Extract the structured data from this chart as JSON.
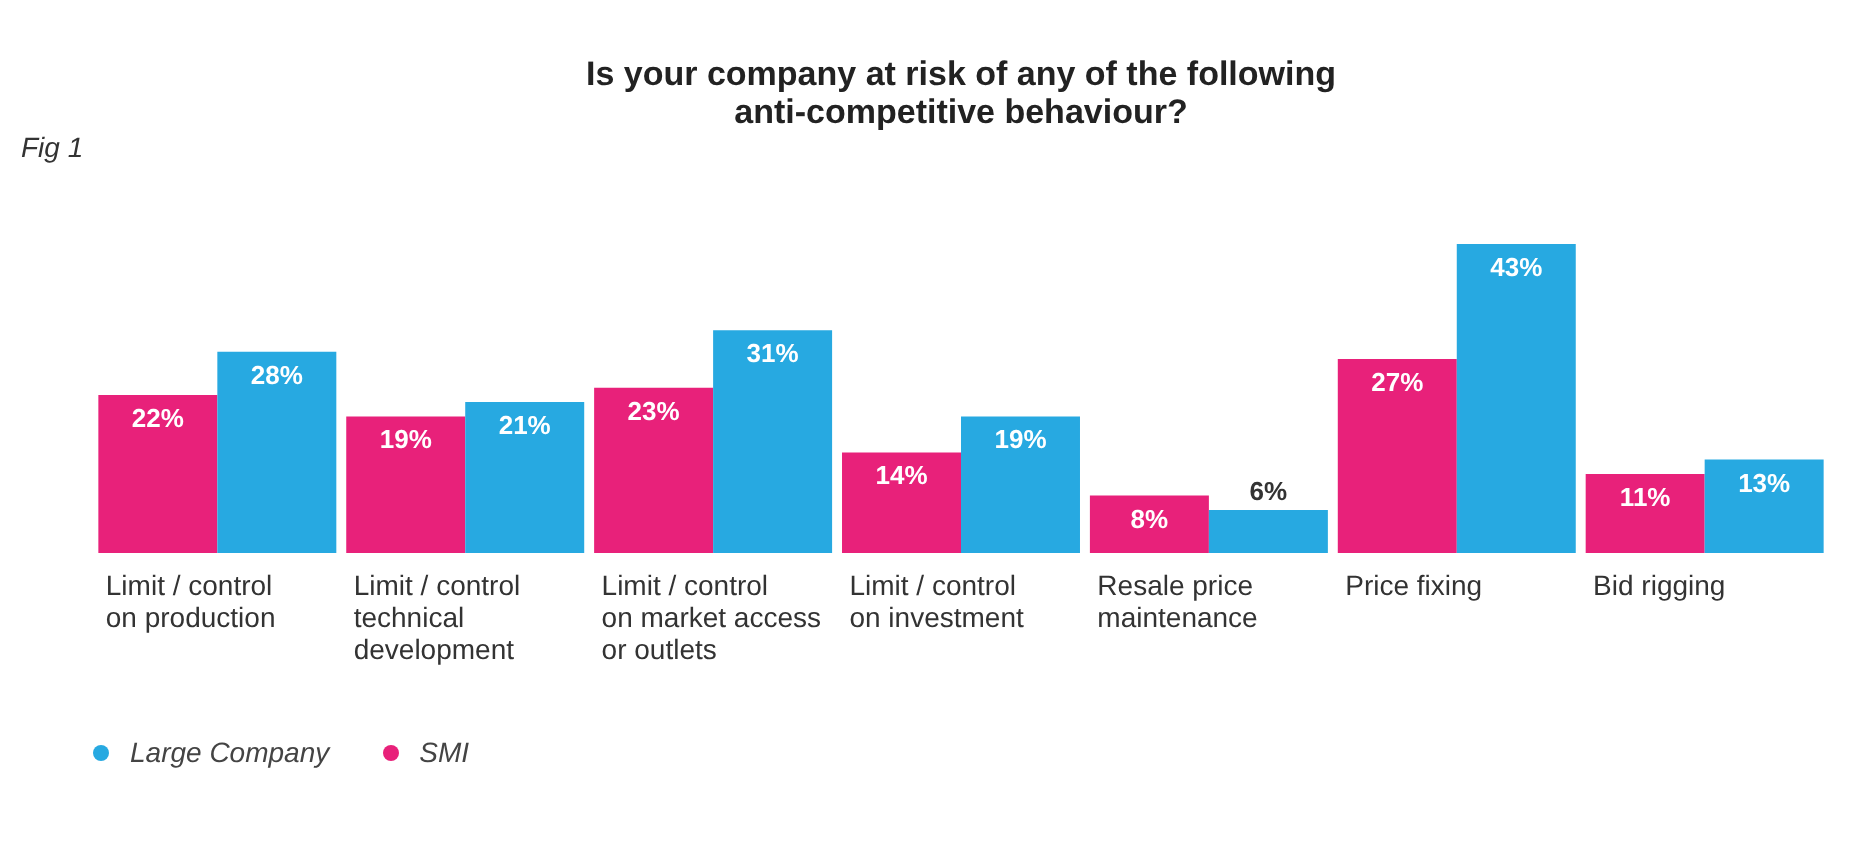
{
  "chart_data": {
    "type": "bar",
    "title": "Is your company at risk of any of the following anti-competitive behaviour?",
    "annotations": [
      "Fig 1"
    ],
    "categories": [
      "Limit / control on production",
      "Limit / control technical development",
      "Limit / control on market access or outlets",
      "Limit / control on investment",
      "Resale price maintenance",
      "Price fixing",
      "Bid rigging"
    ],
    "series": [
      {
        "name": "SMI",
        "color": "#e8217a",
        "values": [
          22,
          19,
          23,
          14,
          8,
          27,
          11
        ],
        "value_labels": [
          "22%",
          "19%",
          "23%",
          "14%",
          "8%",
          "27%",
          "11%"
        ]
      },
      {
        "name": "Large Company",
        "color": "#27a9e1",
        "values": [
          28,
          21,
          31,
          19,
          6,
          43,
          13
        ],
        "value_labels": [
          "28%",
          "21%",
          "31%",
          "19%",
          "6%",
          "43%",
          "13%"
        ]
      }
    ],
    "tick_labels": "x",
    "legend": "bottom left"
  }
}
